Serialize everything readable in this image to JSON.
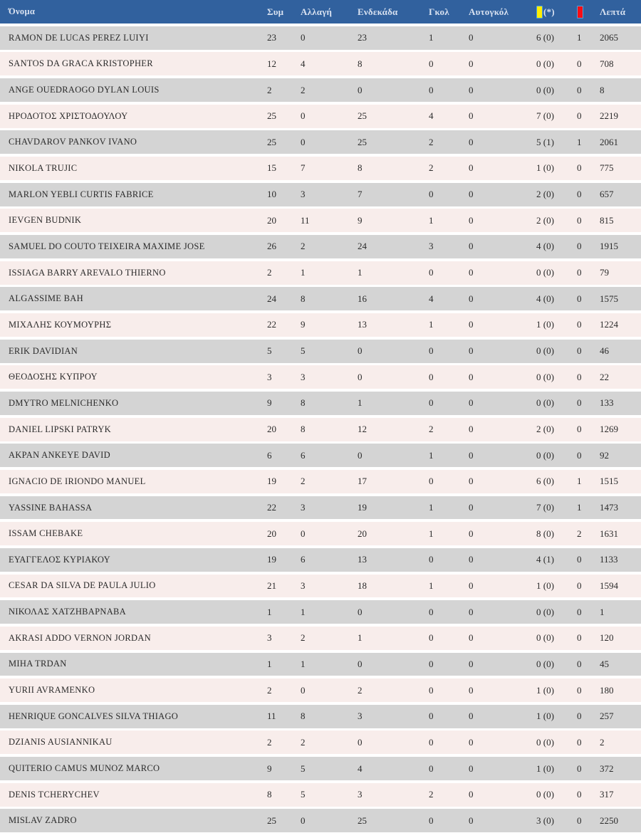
{
  "header": {
    "name": "Όνομα",
    "sym": "Συμ",
    "allagi": "Αλλαγή",
    "endekada": "Ενδεκάδα",
    "gkol": "Γκολ",
    "autogkol": "Αυτογκόλ",
    "yellow_suffix": "(*)",
    "lepta": "Λεπτά"
  },
  "icons": {
    "yellow_card": "yellow-card-icon",
    "red_card": "red-card-icon"
  },
  "colors": {
    "header_bg": "#31619e",
    "header_text": "#d9e2f1",
    "row_gray": "#d4d4d4",
    "row_pink": "#f8edeb",
    "body_text": "#2b2b2b",
    "yellow_card": "#ffee00",
    "red_card": "#fa0d15",
    "card_border": "#4ba0d9"
  },
  "table": {
    "cell_keys": [
      "name",
      "sym",
      "allagi",
      "endekada",
      "gkol",
      "autogkol",
      "yellow",
      "red",
      "lepta"
    ],
    "rows": [
      {
        "name": "RAMON DE LUCAS PEREZ LUIYI",
        "sym": "23",
        "allagi": "0",
        "endekada": "23",
        "gkol": "1",
        "autogkol": "0",
        "yellow": "6 (0)",
        "red": "1",
        "lepta": "2065"
      },
      {
        "name": "SANTOS DA GRACA KRISTOPHER",
        "sym": "12",
        "allagi": "4",
        "endekada": "8",
        "gkol": "0",
        "autogkol": "0",
        "yellow": "0 (0)",
        "red": "0",
        "lepta": "708"
      },
      {
        "name": "ANGE OUEDRAOGO DYLAN LOUIS",
        "sym": "2",
        "allagi": "2",
        "endekada": "0",
        "gkol": "0",
        "autogkol": "0",
        "yellow": "0 (0)",
        "red": "0",
        "lepta": "8"
      },
      {
        "name": "ΗΡΟΔΟΤΟΣ ΧΡΙΣΤΟΔΟΥΛΟΥ",
        "sym": "25",
        "allagi": "0",
        "endekada": "25",
        "gkol": "4",
        "autogkol": "0",
        "yellow": "7 (0)",
        "red": "0",
        "lepta": "2219"
      },
      {
        "name": "CHAVDAROV PANKOV IVANO",
        "sym": "25",
        "allagi": "0",
        "endekada": "25",
        "gkol": "2",
        "autogkol": "0",
        "yellow": "5 (1)",
        "red": "1",
        "lepta": "2061"
      },
      {
        "name": "NIKOLA TRUJIC",
        "sym": "15",
        "allagi": "7",
        "endekada": "8",
        "gkol": "2",
        "autogkol": "0",
        "yellow": "1 (0)",
        "red": "0",
        "lepta": "775"
      },
      {
        "name": "MARLON YEBLI CURTIS FABRICE",
        "sym": "10",
        "allagi": "3",
        "endekada": "7",
        "gkol": "0",
        "autogkol": "0",
        "yellow": "2 (0)",
        "red": "0",
        "lepta": "657"
      },
      {
        "name": "IEVGEN BUDNIK",
        "sym": "20",
        "allagi": "11",
        "endekada": "9",
        "gkol": "1",
        "autogkol": "0",
        "yellow": "2 (0)",
        "red": "0",
        "lepta": "815"
      },
      {
        "name": "SAMUEL DO COUTO TEIXEIRA MAXIME JOSE",
        "sym": "26",
        "allagi": "2",
        "endekada": "24",
        "gkol": "3",
        "autogkol": "0",
        "yellow": "4 (0)",
        "red": "0",
        "lepta": "1915"
      },
      {
        "name": "ISSIAGA BARRY AREVALO THIERNO",
        "sym": "2",
        "allagi": "1",
        "endekada": "1",
        "gkol": "0",
        "autogkol": "0",
        "yellow": "0 (0)",
        "red": "0",
        "lepta": "79"
      },
      {
        "name": "ALGASSIME BAH",
        "sym": "24",
        "allagi": "8",
        "endekada": "16",
        "gkol": "4",
        "autogkol": "0",
        "yellow": "4 (0)",
        "red": "0",
        "lepta": "1575"
      },
      {
        "name": "ΜΙΧΑΛΗΣ ΚΟΥΜΟΥΡΗΣ",
        "sym": "22",
        "allagi": "9",
        "endekada": "13",
        "gkol": "1",
        "autogkol": "0",
        "yellow": "1 (0)",
        "red": "0",
        "lepta": "1224"
      },
      {
        "name": "ERIK DAVIDIAN",
        "sym": "5",
        "allagi": "5",
        "endekada": "0",
        "gkol": "0",
        "autogkol": "0",
        "yellow": "0 (0)",
        "red": "0",
        "lepta": "46"
      },
      {
        "name": "ΘΕΟΔΟΣΗΣ ΚΥΠΡΟΥ",
        "sym": "3",
        "allagi": "3",
        "endekada": "0",
        "gkol": "0",
        "autogkol": "0",
        "yellow": "0 (0)",
        "red": "0",
        "lepta": "22"
      },
      {
        "name": "DMYTRO MELNICHENKO",
        "sym": "9",
        "allagi": "8",
        "endekada": "1",
        "gkol": "0",
        "autogkol": "0",
        "yellow": "0 (0)",
        "red": "0",
        "lepta": "133"
      },
      {
        "name": "DANIEL LIPSKI PATRYK",
        "sym": "20",
        "allagi": "8",
        "endekada": "12",
        "gkol": "2",
        "autogkol": "0",
        "yellow": "2 (0)",
        "red": "0",
        "lepta": "1269"
      },
      {
        "name": "AKPAN ANKEYE DAVID",
        "sym": "6",
        "allagi": "6",
        "endekada": "0",
        "gkol": "1",
        "autogkol": "0",
        "yellow": "0 (0)",
        "red": "0",
        "lepta": "92"
      },
      {
        "name": "IGNACIO DE IRIONDO MANUEL",
        "sym": "19",
        "allagi": "2",
        "endekada": "17",
        "gkol": "0",
        "autogkol": "0",
        "yellow": "6 (0)",
        "red": "1",
        "lepta": "1515"
      },
      {
        "name": "YASSINE BAHASSA",
        "sym": "22",
        "allagi": "3",
        "endekada": "19",
        "gkol": "1",
        "autogkol": "0",
        "yellow": "7 (0)",
        "red": "1",
        "lepta": "1473"
      },
      {
        "name": "ISSAM CHEBAKE",
        "sym": "20",
        "allagi": "0",
        "endekada": "20",
        "gkol": "1",
        "autogkol": "0",
        "yellow": "8 (0)",
        "red": "2",
        "lepta": "1631"
      },
      {
        "name": "ΕΥΑΓΓΕΛΟΣ ΚΥΡΙΑΚΟΥ",
        "sym": "19",
        "allagi": "6",
        "endekada": "13",
        "gkol": "0",
        "autogkol": "0",
        "yellow": "4 (1)",
        "red": "0",
        "lepta": "1133"
      },
      {
        "name": "CESAR DA SILVA DE PAULA JULIO",
        "sym": "21",
        "allagi": "3",
        "endekada": "18",
        "gkol": "1",
        "autogkol": "0",
        "yellow": "1 (0)",
        "red": "0",
        "lepta": "1594"
      },
      {
        "name": "ΝΙΚΟΛΑΣ ΧΑΤΖΗΒΑΡΝΑΒΑ",
        "sym": "1",
        "allagi": "1",
        "endekada": "0",
        "gkol": "0",
        "autogkol": "0",
        "yellow": "0 (0)",
        "red": "0",
        "lepta": "1"
      },
      {
        "name": "AKRASI ADDO VERNON JORDAN",
        "sym": "3",
        "allagi": "2",
        "endekada": "1",
        "gkol": "0",
        "autogkol": "0",
        "yellow": "0 (0)",
        "red": "0",
        "lepta": "120"
      },
      {
        "name": "MIHA TRDAN",
        "sym": "1",
        "allagi": "1",
        "endekada": "0",
        "gkol": "0",
        "autogkol": "0",
        "yellow": "0 (0)",
        "red": "0",
        "lepta": "45"
      },
      {
        "name": "YURII AVRAMENKO",
        "sym": "2",
        "allagi": "0",
        "endekada": "2",
        "gkol": "0",
        "autogkol": "0",
        "yellow": "1 (0)",
        "red": "0",
        "lepta": "180"
      },
      {
        "name": "HENRIQUE GONCALVES SILVA THIAGO",
        "sym": "11",
        "allagi": "8",
        "endekada": "3",
        "gkol": "0",
        "autogkol": "0",
        "yellow": "1 (0)",
        "red": "0",
        "lepta": "257"
      },
      {
        "name": "DZIANIS AUSIANNIKAU",
        "sym": "2",
        "allagi": "2",
        "endekada": "0",
        "gkol": "0",
        "autogkol": "0",
        "yellow": "0 (0)",
        "red": "0",
        "lepta": "2"
      },
      {
        "name": "QUITERIO CAMUS MUNOZ MARCO",
        "sym": "9",
        "allagi": "5",
        "endekada": "4",
        "gkol": "0",
        "autogkol": "0",
        "yellow": "1 (0)",
        "red": "0",
        "lepta": "372"
      },
      {
        "name": "DENIS TCHERYCHEV",
        "sym": "8",
        "allagi": "5",
        "endekada": "3",
        "gkol": "2",
        "autogkol": "0",
        "yellow": "0 (0)",
        "red": "0",
        "lepta": "317"
      },
      {
        "name": "MISLAV ZADRO",
        "sym": "25",
        "allagi": "0",
        "endekada": "25",
        "gkol": "0",
        "autogkol": "0",
        "yellow": "3 (0)",
        "red": "0",
        "lepta": "2250"
      }
    ]
  }
}
